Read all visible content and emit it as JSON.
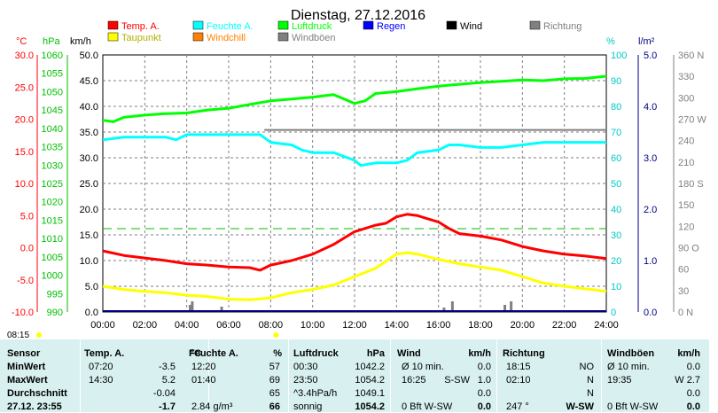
{
  "chart_data": {
    "type": "line",
    "title": "Dienstag, 27.12.2016",
    "x_ticks": [
      "00:00",
      "02:00",
      "04:00",
      "06:00",
      "08:00",
      "10:00",
      "12:00",
      "14:00",
      "16:00",
      "18:00",
      "20:00",
      "22:00",
      "24:00"
    ],
    "legend": [
      {
        "label": "Temp. A.",
        "color": "#ff0000"
      },
      {
        "label": "Feuchte A.",
        "color": "#00ffff"
      },
      {
        "label": "Luftdruck",
        "color": "#00ff00"
      },
      {
        "label": "Regen",
        "color": "#0000ff"
      },
      {
        "label": "Wind",
        "color": "#000000"
      },
      {
        "label": "Richtung",
        "color": "#808080"
      },
      {
        "label": "Taupunkt",
        "color": "#ffff00"
      },
      {
        "label": "Windchill",
        "color": "#ff8000"
      },
      {
        "label": "Windböen",
        "color": "#808080"
      }
    ],
    "axes": {
      "temp": {
        "unit": "°C",
        "ticks": [
          "30.0",
          "25.0",
          "20.0",
          "15.0",
          "10.0",
          "5.0",
          "0.0",
          "-5.0",
          "-10.0"
        ],
        "color": "#ff0000"
      },
      "pressure": {
        "unit": "hPa",
        "ticks": [
          "1060",
          "1055",
          "1050",
          "1045",
          "1040",
          "1035",
          "1030",
          "1025",
          "1020",
          "1015",
          "1010",
          "1005",
          "1000",
          "995",
          "990"
        ],
        "color": "#00c000"
      },
      "wind": {
        "unit": "km/h",
        "ticks": [
          "50.0",
          "45.0",
          "40.0",
          "35.0",
          "30.0",
          "25.0",
          "20.0",
          "15.0",
          "10.0",
          "5.0",
          "0.0"
        ],
        "color": "#000000"
      },
      "humidity": {
        "unit": "%",
        "ticks": [
          "100",
          "90",
          "80",
          "70",
          "60",
          "50",
          "40",
          "30",
          "20",
          "10",
          "0"
        ],
        "color": "#00c8c8"
      },
      "rain": {
        "unit": "l/m²",
        "ticks": [
          "5.0",
          "4.0",
          "3.0",
          "2.0",
          "1.0",
          "0.0"
        ],
        "color": "#000080"
      },
      "direction": {
        "ticks": [
          "360 N",
          "330",
          "300",
          "270 W",
          "240",
          "210",
          "180 S",
          "150",
          "120",
          "90 O",
          "60",
          "30",
          "0 N"
        ],
        "color": "#808080"
      }
    },
    "ranges": {
      "x": [
        0,
        24
      ],
      "temp": [
        -10,
        30
      ],
      "pressure": [
        990,
        1060
      ],
      "wind": [
        0,
        50
      ],
      "humidity": [
        0,
        100
      ],
      "rain": [
        0,
        5
      ],
      "direction": [
        0,
        360
      ]
    },
    "grid": true,
    "series": [
      {
        "name": "Temp. A.",
        "axis": "temp",
        "color": "#ff0000",
        "x": [
          0,
          1,
          2,
          3,
          4,
          5,
          6,
          7,
          7.5,
          8,
          9,
          10,
          11,
          12,
          13,
          13.5,
          14,
          14.5,
          15,
          15.5,
          16,
          16.5,
          17,
          18,
          19,
          20,
          21,
          22,
          23,
          24
        ],
        "y": [
          -0.5,
          -1.2,
          -1.6,
          -2.0,
          -2.5,
          -2.7,
          -3.0,
          -3.1,
          -3.5,
          -2.7,
          -2.0,
          -1.0,
          0.5,
          2.5,
          3.5,
          3.8,
          4.8,
          5.2,
          5.0,
          4.5,
          4.0,
          3.0,
          2.2,
          1.8,
          1.2,
          0.2,
          -0.5,
          -1.0,
          -1.3,
          -1.7
        ]
      },
      {
        "name": "Feuchte A.",
        "axis": "humidity",
        "color": "#00ffff",
        "x": [
          0,
          1,
          2,
          3,
          3.5,
          4,
          5,
          6,
          7,
          7.5,
          8,
          9,
          9.5,
          10,
          11,
          12,
          12.3,
          13,
          14,
          14.5,
          15,
          16,
          16.5,
          17,
          18,
          19,
          20,
          21,
          22,
          23,
          24
        ],
        "y": [
          67,
          68,
          68,
          68,
          67,
          69,
          69,
          69,
          69,
          69,
          66,
          65,
          63,
          62,
          62,
          59,
          57,
          58,
          58,
          59,
          62,
          63,
          65,
          65,
          64,
          64,
          65,
          66,
          66,
          66,
          66
        ]
      },
      {
        "name": "Luftdruck",
        "axis": "pressure",
        "color": "#00ff00",
        "x": [
          0,
          0.5,
          1,
          2,
          3,
          4,
          5,
          6,
          7,
          8,
          9,
          10,
          11,
          12,
          12.5,
          13,
          14,
          15,
          16,
          17,
          18,
          19,
          20,
          21,
          22,
          23,
          24
        ],
        "y": [
          1042.2,
          1041.8,
          1043,
          1043.6,
          1044,
          1044.2,
          1045,
          1045.5,
          1046.5,
          1047.5,
          1048,
          1048.5,
          1049.2,
          1046.8,
          1047.5,
          1049.5,
          1050,
          1050.8,
          1051.5,
          1052,
          1052.5,
          1052.8,
          1053.2,
          1053,
          1053.5,
          1053.6,
          1054.2
        ]
      },
      {
        "name": "Taupunkt",
        "axis": "temp",
        "color": "#ffff00",
        "x": [
          0,
          1,
          2,
          3,
          4,
          5,
          6,
          7,
          8,
          9,
          10,
          11,
          12,
          13,
          14,
          14.5,
          15,
          16,
          17,
          18,
          19,
          20,
          21,
          22,
          23,
          24
        ],
        "y": [
          -6.0,
          -6.5,
          -6.8,
          -7.0,
          -7.4,
          -7.6,
          -8.0,
          -8.1,
          -7.8,
          -7.0,
          -6.5,
          -5.8,
          -4.5,
          -3.2,
          -1.0,
          -0.8,
          -1.0,
          -1.8,
          -2.5,
          -3.0,
          -3.5,
          -4.5,
          -5.5,
          -6.0,
          -6.4,
          -6.8
        ]
      },
      {
        "name": "Richtung",
        "axis": "direction",
        "color": "#808080",
        "x": [
          7.7,
          8,
          9,
          10,
          11,
          12,
          13,
          14,
          15,
          16,
          17,
          18,
          19,
          20,
          21,
          22,
          23,
          24
        ],
        "y": [
          255,
          255,
          255,
          255,
          255,
          255,
          255,
          255,
          255,
          255,
          255,
          255,
          255,
          255,
          255,
          255,
          255,
          255
        ]
      }
    ]
  },
  "stats": {
    "headers": [
      {
        "sensor": "Sensor",
        "temp": "Temp. A.",
        "temp_u": "°C",
        "hum": "Feuchte A.",
        "hum_u": "%",
        "press": "Luftdruck",
        "press_u": "hPa",
        "wind": "Wind",
        "wind_u": "km/h",
        "dir": "Richtung",
        "gust": "Windböen",
        "gust_u": "km/h"
      }
    ],
    "rows": [
      {
        "label": "MinWert",
        "t_time": "07:20",
        "t_val": "-3.5",
        "h_time": "12:20",
        "h_val": "57",
        "p_time": "00:30",
        "p_val": "1042.2",
        "w_time": "Ø 10 min.",
        "w_dir": "",
        "w_val": "0.0",
        "d_time": "18:15",
        "d_val": "NO",
        "g_time": "Ø 10 min.",
        "g_val": "0.0"
      },
      {
        "label": "MaxWert",
        "t_time": "14:30",
        "t_val": "5.2",
        "h_time": "01:40",
        "h_val": "69",
        "p_time": "23:50",
        "p_val": "1054.2",
        "w_time": "16:25",
        "w_dir": "S-SW",
        "w_val": "1.0",
        "d_time": "02:10",
        "d_val": "N",
        "g_time": "19:35",
        "g_val": "W 2.7"
      },
      {
        "label": "Durchschnitt",
        "t_time": "",
        "t_val": "-0.04",
        "h_time": "",
        "h_val": "65",
        "p_time": "^3.4hPa/h",
        "p_val": "1049.1",
        "w_time": "",
        "w_dir": "",
        "w_val": "0.0",
        "d_time": "",
        "d_val": "N",
        "g_time": "",
        "g_val": "0.0"
      },
      {
        "label": "27.12. 23:55",
        "t_time": "",
        "t_val": "-1.7",
        "h_time": "2.84 g/m³",
        "h_val": "66",
        "p_time": "sonnig",
        "p_val": "1054.2",
        "w_time": "0 Bft W-SW",
        "w_dir": "",
        "w_val": "0.0",
        "d_time": "247 °",
        "d_val": "W-SW",
        "g_time": "0 Bft W-SW",
        "g_val": "0.0"
      }
    ],
    "sunrise": "08:15"
  }
}
